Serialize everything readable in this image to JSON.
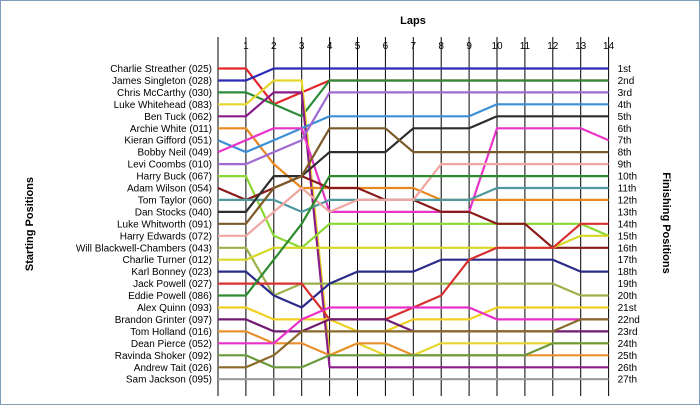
{
  "chart_data": {
    "type": "line",
    "title": "Laps",
    "ylabel_left": "Starting Positions",
    "ylabel_right": "Finishing Positions",
    "x": [
      0,
      1,
      2,
      3,
      4,
      5,
      6,
      7,
      8,
      9,
      10,
      11,
      12,
      13,
      14
    ],
    "x_tick_labels": [
      "1",
      "2",
      "3",
      "4",
      "5",
      "6",
      "7",
      "8",
      "9",
      "10",
      "11",
      "12",
      "13",
      "14"
    ],
    "finish_labels": [
      "1st",
      "2nd",
      "3rd",
      "4th",
      "5th",
      "6th",
      "7th",
      "8th",
      "9th",
      "10th",
      "11th",
      "12th",
      "13th",
      "14th",
      "15th",
      "16th",
      "17th",
      "18th",
      "19th",
      "20th",
      "21st",
      "22nd",
      "23rd",
      "24th",
      "25th",
      "26th",
      "27th"
    ],
    "grid": "vertical lines at each lap",
    "series": [
      {
        "name": "Charlie Streather (025)",
        "color": "#e3262b",
        "positions": [
          1,
          1,
          4,
          3,
          2,
          2,
          2,
          2,
          2,
          2,
          2,
          2,
          2,
          2,
          2
        ]
      },
      {
        "name": "James Singleton (028)",
        "color": "#2b2bb6",
        "positions": [
          2,
          2,
          1,
          1,
          1,
          1,
          1,
          1,
          1,
          1,
          1,
          1,
          1,
          1,
          1
        ]
      },
      {
        "name": "Chris McCarthy (030)",
        "color": "#2e8b3a",
        "positions": [
          3,
          3,
          4,
          5,
          2,
          2,
          2,
          2,
          2,
          2,
          2,
          2,
          2,
          2,
          2
        ]
      },
      {
        "name": "Luke Whitehead (083)",
        "color": "#e5d62e",
        "positions": [
          4,
          4,
          2,
          2,
          25,
          24,
          25,
          25,
          24,
          24,
          24,
          24,
          24,
          24,
          24
        ]
      },
      {
        "name": "Ben Tuck (062)",
        "color": "#8a1c8a",
        "positions": [
          5,
          5,
          3,
          3,
          26,
          26,
          26,
          26,
          26,
          26,
          26,
          26,
          26,
          26,
          26
        ]
      },
      {
        "name": "Archie White (011)",
        "color": "#e8891f",
        "positions": [
          6,
          6,
          9,
          11,
          11,
          11,
          11,
          11,
          12,
          12,
          12,
          12,
          12,
          12,
          12
        ]
      },
      {
        "name": "Kieran Gifford (051)",
        "color": "#3c8fd8",
        "positions": [
          7,
          8,
          7,
          6,
          5,
          5,
          5,
          5,
          5,
          5,
          4,
          4,
          4,
          4,
          4
        ]
      },
      {
        "name": "Bobby Neil (049)",
        "color": "#e834c8",
        "positions": [
          8,
          7,
          6,
          6,
          13,
          13,
          13,
          13,
          13,
          13,
          6,
          6,
          6,
          6,
          7
        ]
      },
      {
        "name": "Levi Coombs (010)",
        "color": "#a06ad0",
        "positions": [
          9,
          9,
          8,
          7,
          3,
          3,
          3,
          3,
          3,
          3,
          3,
          3,
          3,
          3,
          3
        ]
      },
      {
        "name": "Harry Buck (067)",
        "color": "#8bd832",
        "positions": [
          10,
          10,
          15,
          16,
          14,
          14,
          14,
          14,
          14,
          14,
          14,
          14,
          14,
          14,
          15
        ]
      },
      {
        "name": "Adam Wilson (054)",
        "color": "#8b1a1a",
        "positions": [
          11,
          12,
          11,
          10,
          11,
          11,
          12,
          12,
          13,
          13,
          14,
          14,
          16,
          16,
          16
        ]
      },
      {
        "name": "Tom Taylor (060)",
        "color": "#4f98a0",
        "positions": [
          12,
          12,
          12,
          13,
          12,
          12,
          12,
          12,
          12,
          12,
          11,
          11,
          11,
          11,
          11
        ]
      },
      {
        "name": "Dan Stocks (040)",
        "color": "#2d2d2d",
        "positions": [
          13,
          13,
          10,
          10,
          8,
          8,
          8,
          6,
          6,
          6,
          5,
          5,
          5,
          5,
          5
        ]
      },
      {
        "name": "Luke Whitworth (091)",
        "color": "#7b5a2a",
        "positions": [
          14,
          14,
          11,
          10,
          6,
          6,
          6,
          8,
          8,
          8,
          8,
          8,
          8,
          8,
          8
        ]
      },
      {
        "name": "Harry Edwards (072)",
        "color": "#f0a6a0",
        "positions": [
          15,
          15,
          13,
          11,
          13,
          12,
          12,
          12,
          9,
          9,
          9,
          9,
          9,
          9,
          9
        ]
      },
      {
        "name": "Will Blackwell-Chambers (043)",
        "color": "#9bb04a",
        "positions": [
          16,
          16,
          20,
          19,
          19,
          19,
          19,
          19,
          19,
          19,
          19,
          19,
          19,
          20,
          20
        ]
      },
      {
        "name": "Charlie Turner (012)",
        "color": "#d8d826",
        "positions": [
          17,
          17,
          16,
          16,
          16,
          16,
          16,
          16,
          16,
          16,
          16,
          16,
          16,
          15,
          15
        ]
      },
      {
        "name": "Karl Bonney (023)",
        "color": "#2b2b8a",
        "positions": [
          18,
          18,
          20,
          21,
          19,
          18,
          18,
          18,
          17,
          17,
          17,
          17,
          17,
          18,
          18
        ]
      },
      {
        "name": "Jack Powell (027)",
        "color": "#d83030",
        "positions": [
          19,
          19,
          19,
          19,
          22,
          22,
          22,
          21,
          20,
          17,
          16,
          16,
          16,
          14,
          14
        ]
      },
      {
        "name": "Eddie Powell (086)",
        "color": "#2e8a2e",
        "positions": [
          20,
          20,
          17,
          14,
          10,
          10,
          10,
          10,
          10,
          10,
          10,
          10,
          10,
          10,
          10
        ]
      },
      {
        "name": "Alex Quinn (093)",
        "color": "#f0d020",
        "positions": [
          21,
          21,
          22,
          22,
          22,
          23,
          23,
          22,
          22,
          22,
          21,
          21,
          21,
          21,
          21
        ]
      },
      {
        "name": "Brandon Grinter (097)",
        "color": "#701a70",
        "positions": [
          22,
          22,
          23,
          23,
          22,
          22,
          22,
          23,
          23,
          23,
          23,
          23,
          23,
          23,
          23
        ]
      },
      {
        "name": "Tom Holland (016)",
        "color": "#e89030",
        "positions": [
          23,
          23,
          24,
          24,
          25,
          24,
          24,
          25,
          25,
          25,
          25,
          25,
          25,
          25,
          25
        ]
      },
      {
        "name": "Dean Pierce (052)",
        "color": "#e830c8",
        "positions": [
          24,
          24,
          24,
          22,
          21,
          21,
          21,
          21,
          21,
          21,
          22,
          22,
          22,
          22,
          22
        ]
      },
      {
        "name": "Ravinda Shoker (092)",
        "color": "#6a9a3a",
        "positions": [
          25,
          25,
          26,
          26,
          25,
          25,
          25,
          25,
          25,
          25,
          25,
          25,
          24,
          24,
          24
        ]
      },
      {
        "name": "Andrew Tait (026)",
        "color": "#8a6a2a",
        "positions": [
          26,
          26,
          25,
          23,
          23,
          23,
          23,
          23,
          23,
          23,
          23,
          23,
          23,
          22,
          22
        ]
      },
      {
        "name": "Sam Jackson (095)",
        "color": "#9a9a9a",
        "positions": [
          27,
          27,
          27,
          27,
          27,
          27,
          27,
          27,
          27,
          27,
          27,
          27,
          27,
          27,
          27
        ]
      }
    ]
  }
}
